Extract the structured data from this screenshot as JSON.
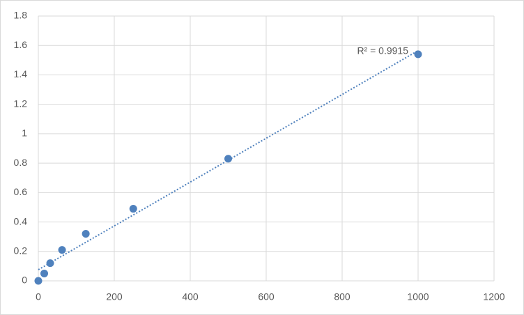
{
  "chart_data": {
    "type": "scatter",
    "x": [
      0,
      15.6,
      31.25,
      62.5,
      125,
      250,
      500,
      1000
    ],
    "series": [
      {
        "color": "#4f81bd",
        "values": [
          0,
          0.05,
          0.12,
          0.21,
          0.32,
          0.49,
          0.83,
          1.54
        ]
      }
    ],
    "trendline": "linear",
    "annotation": "R² = 0.9915",
    "xlim": [
      0,
      1200
    ],
    "xticks": [
      0,
      200,
      400,
      600,
      800,
      1000,
      1200
    ],
    "ylim": [
      0,
      1.8
    ],
    "yticks": [
      0,
      0.2,
      0.4,
      0.6,
      0.8,
      1,
      1.2,
      1.4,
      1.6,
      1.8
    ],
    "grid": true
  }
}
